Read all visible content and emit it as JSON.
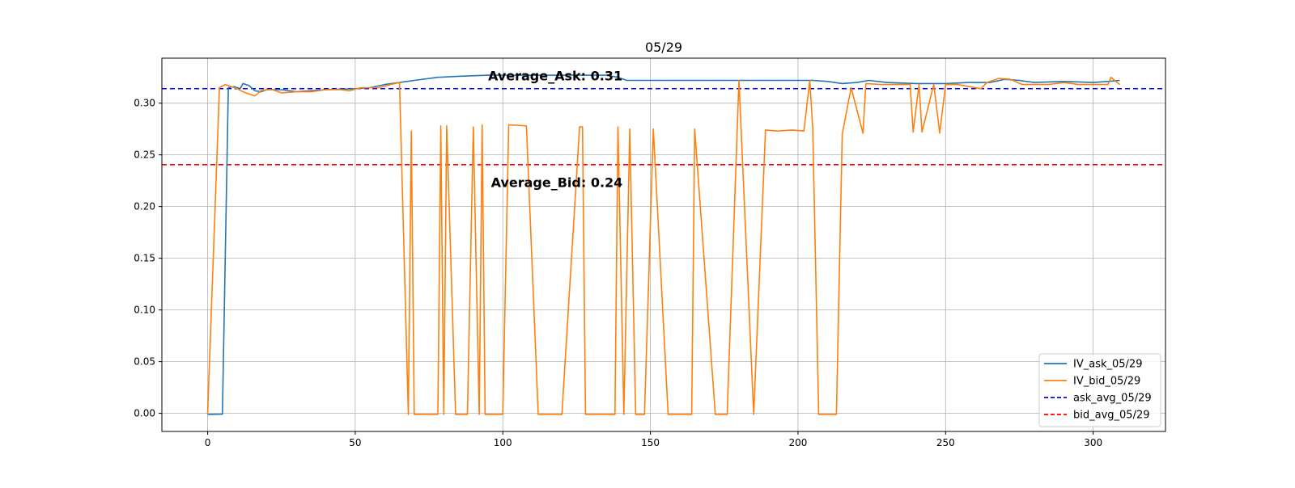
{
  "chart_data": {
    "type": "line",
    "title": "05/29",
    "xlabel": "",
    "ylabel": "",
    "xlim": [
      -15.5,
      324.5
    ],
    "ylim": [
      -0.0175,
      0.3435
    ],
    "grid": true,
    "legend_position": "lower-right",
    "xticks": [
      0,
      50,
      100,
      150,
      200,
      250,
      300
    ],
    "yticks": [
      0.0,
      0.05,
      0.1,
      0.15,
      0.2,
      0.25,
      0.3
    ],
    "tick_labels_x": [
      "0",
      "50",
      "100",
      "150",
      "200",
      "250",
      "300"
    ],
    "tick_labels_y": [
      "0.00",
      "0.05",
      "0.10",
      "0.15",
      "0.20",
      "0.25",
      "0.30"
    ],
    "series": [
      {
        "name": "IV_ask_05/29",
        "color": "#1f77b4",
        "style": "solid",
        "points": [
          [
            0,
            -0.001
          ],
          [
            5,
            -0.0008
          ],
          [
            7,
            0.315
          ],
          [
            9,
            0.316
          ],
          [
            11,
            0.314
          ],
          [
            12,
            0.319
          ],
          [
            14,
            0.317
          ],
          [
            16,
            0.312
          ],
          [
            18,
            0.311
          ],
          [
            20,
            0.313
          ],
          [
            25,
            0.313
          ],
          [
            30,
            0.311
          ],
          [
            40,
            0.313
          ],
          [
            50,
            0.314
          ],
          [
            55,
            0.315
          ],
          [
            60,
            0.318
          ],
          [
            65,
            0.32
          ],
          [
            70,
            0.322
          ],
          [
            78,
            0.325
          ],
          [
            85,
            0.326
          ],
          [
            95,
            0.327
          ],
          [
            105,
            0.327
          ],
          [
            115,
            0.327
          ],
          [
            125,
            0.327
          ],
          [
            135,
            0.327
          ],
          [
            139,
            0.325
          ],
          [
            142,
            0.322
          ],
          [
            150,
            0.322
          ],
          [
            170,
            0.322
          ],
          [
            190,
            0.322
          ],
          [
            205,
            0.322
          ],
          [
            210,
            0.321
          ],
          [
            215,
            0.319
          ],
          [
            220,
            0.32
          ],
          [
            224,
            0.322
          ],
          [
            230,
            0.32
          ],
          [
            240,
            0.319
          ],
          [
            250,
            0.319
          ],
          [
            258,
            0.32
          ],
          [
            265,
            0.32
          ],
          [
            270,
            0.323
          ],
          [
            275,
            0.322
          ],
          [
            280,
            0.32
          ],
          [
            290,
            0.321
          ],
          [
            300,
            0.32
          ],
          [
            305,
            0.321
          ],
          [
            309,
            0.322
          ]
        ]
      },
      {
        "name": "IV_bid_05/29",
        "color": "#ff7f0e",
        "style": "solid",
        "points": [
          [
            0,
            -0.001
          ],
          [
            4,
            0.315
          ],
          [
            6,
            0.318
          ],
          [
            8,
            0.316
          ],
          [
            10,
            0.314
          ],
          [
            12,
            0.311
          ],
          [
            14,
            0.309
          ],
          [
            16,
            0.307
          ],
          [
            18,
            0.312
          ],
          [
            20,
            0.313
          ],
          [
            22,
            0.313
          ],
          [
            25,
            0.31
          ],
          [
            30,
            0.311
          ],
          [
            35,
            0.311
          ],
          [
            40,
            0.313
          ],
          [
            45,
            0.313
          ],
          [
            48,
            0.312
          ],
          [
            52,
            0.315
          ],
          [
            58,
            0.315
          ],
          [
            62,
            0.318
          ],
          [
            65,
            0.32
          ],
          [
            68,
            -0.001
          ],
          [
            69,
            0.273
          ],
          [
            70,
            -0.001
          ],
          [
            78,
            -0.001
          ],
          [
            79,
            0.278
          ],
          [
            80,
            -0.001
          ],
          [
            81,
            0.278
          ],
          [
            84,
            -0.001
          ],
          [
            88,
            -0.001
          ],
          [
            90,
            0.277
          ],
          [
            92,
            -0.001
          ],
          [
            93,
            0.279
          ],
          [
            94,
            -0.001
          ],
          [
            96,
            -0.001
          ],
          [
            100,
            -0.001
          ],
          [
            102,
            0.279
          ],
          [
            108,
            0.278
          ],
          [
            112,
            -0.001
          ],
          [
            120,
            -0.001
          ],
          [
            126,
            0.277
          ],
          [
            127,
            0.277
          ],
          [
            128,
            -0.001
          ],
          [
            138,
            -0.001
          ],
          [
            139,
            0.277
          ],
          [
            141,
            -0.001
          ],
          [
            143,
            0.275
          ],
          [
            145,
            -0.001
          ],
          [
            148,
            -0.001
          ],
          [
            151,
            0.275
          ],
          [
            156,
            -0.001
          ],
          [
            164,
            -0.001
          ],
          [
            165,
            0.275
          ],
          [
            172,
            -0.001
          ],
          [
            176,
            -0.001
          ],
          [
            180,
            0.322
          ],
          [
            185,
            -0.001
          ],
          [
            189,
            0.274
          ],
          [
            193,
            0.273
          ],
          [
            198,
            0.274
          ],
          [
            202,
            0.273
          ],
          [
            204,
            0.322
          ],
          [
            205,
            0.275
          ],
          [
            207,
            -0.001
          ],
          [
            213,
            -0.001
          ],
          [
            215,
            0.27
          ],
          [
            218,
            0.315
          ],
          [
            222,
            0.271
          ],
          [
            223,
            0.319
          ],
          [
            228,
            0.318
          ],
          [
            234,
            0.318
          ],
          [
            238,
            0.318
          ],
          [
            239,
            0.272
          ],
          [
            241,
            0.318
          ],
          [
            242,
            0.272
          ],
          [
            246,
            0.318
          ],
          [
            248,
            0.271
          ],
          [
            250,
            0.318
          ],
          [
            254,
            0.318
          ],
          [
            262,
            0.314
          ],
          [
            264,
            0.32
          ],
          [
            268,
            0.324
          ],
          [
            272,
            0.323
          ],
          [
            276,
            0.318
          ],
          [
            280,
            0.318
          ],
          [
            285,
            0.318
          ],
          [
            290,
            0.32
          ],
          [
            295,
            0.318
          ],
          [
            300,
            0.318
          ],
          [
            305,
            0.318
          ],
          [
            306,
            0.325
          ],
          [
            309,
            0.318
          ]
        ]
      },
      {
        "name": "ask_avg_05/29",
        "color": "#0000ff",
        "style": "dashed",
        "hline": 0.314
      },
      {
        "name": "bid_avg_05/29",
        "color": "#ff0000",
        "style": "dashed",
        "hline": 0.2405
      }
    ],
    "annotations": [
      {
        "text": "Average_Ask: 0.31",
        "x": 95,
        "y": 0.322
      },
      {
        "text": "Average_Bid: 0.24",
        "x": 96,
        "y": 0.219
      }
    ]
  }
}
